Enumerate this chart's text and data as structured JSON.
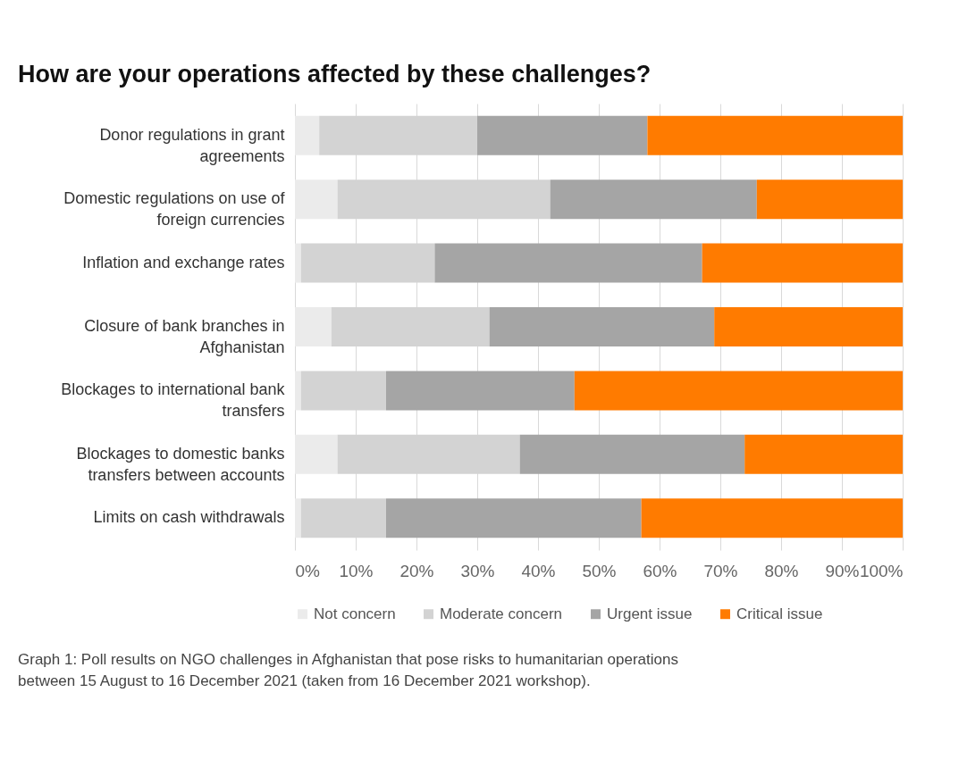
{
  "chart_data": {
    "type": "bar",
    "orientation": "horizontal",
    "stacked": true,
    "title": "How are your operations affected by these challenges?",
    "categories": [
      "Donor regulations in grant agreements",
      "Domestic regulations on use of foreign currencies",
      "Inflation and exchange rates",
      "Closure of bank branches in Afghanistan",
      "Blockages to international bank transfers",
      "Blockages to domestic banks transfers between accounts",
      "Limits on cash withdrawals"
    ],
    "series": [
      {
        "name": "Not concern",
        "color": "#ebebeb",
        "values": [
          4,
          7,
          1,
          6,
          1,
          7,
          1
        ]
      },
      {
        "name": "Moderate concern",
        "color": "#d3d3d3",
        "values": [
          26,
          35,
          22,
          26,
          14,
          30,
          14
        ]
      },
      {
        "name": "Urgent issue",
        "color": "#a5a5a5",
        "values": [
          28,
          34,
          44,
          37,
          31,
          37,
          42
        ]
      },
      {
        "name": "Critical issue",
        "color": "#ff7b00",
        "values": [
          42,
          24,
          33,
          31,
          54,
          26,
          43
        ]
      }
    ],
    "xlim": [
      0,
      100
    ],
    "xticks": [
      {
        "value": 0,
        "label": "0%"
      },
      {
        "value": 10,
        "label": "10%"
      },
      {
        "value": 20,
        "label": "20%"
      },
      {
        "value": 30,
        "label": "30%"
      },
      {
        "value": 40,
        "label": "40%"
      },
      {
        "value": 50,
        "label": "50%"
      },
      {
        "value": 60,
        "label": "60%"
      },
      {
        "value": 70,
        "label": "70%"
      },
      {
        "value": 80,
        "label": "80%"
      },
      {
        "value": 90,
        "label": "90%"
      },
      {
        "value": 100,
        "label": "100%"
      }
    ],
    "grid": "x",
    "legend": "bottom left",
    "annotations": [
      "Graph 1: Poll results on NGO challenges in Afghanistan that pose risks to humanitarian operations between 15 August to 16 December 2021 (taken from 16 December 2021 workshop)."
    ]
  }
}
